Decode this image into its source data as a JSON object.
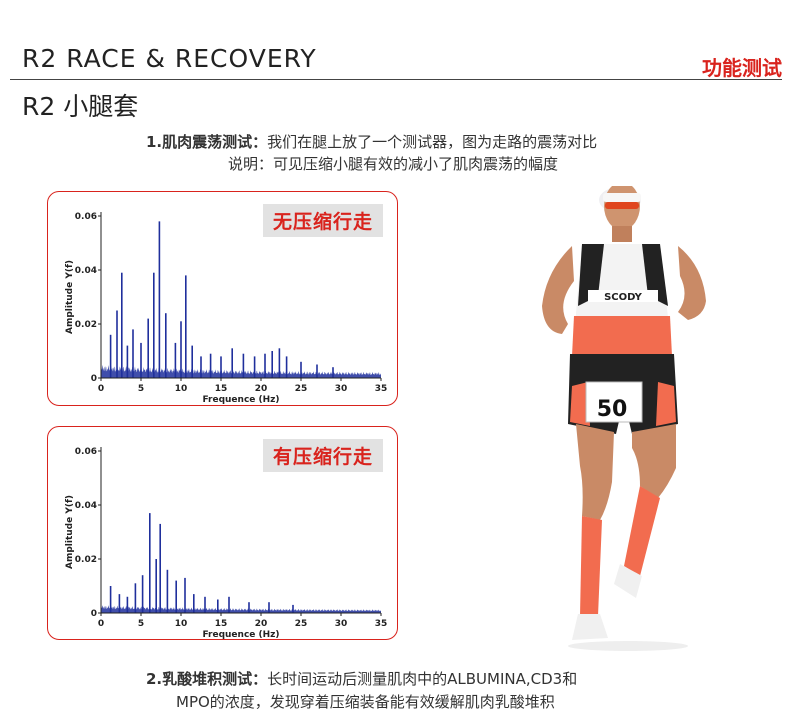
{
  "header": {
    "title": "R2 RACE & RECOVERY",
    "tag": "功能测试",
    "subtitle": "R2 小腿套"
  },
  "section1": {
    "heading": "1.肌肉震荡测试：",
    "text": "我们在腿上放了一个测试器，图为走路的震荡对比",
    "line2": "说明：可见压缩小腿有效的减小了肌肉震荡的幅度"
  },
  "section2": {
    "heading": "2.乳酸堆积测试：",
    "text": "长时间运动后测量肌肉中的ALBUMINA,CD3和",
    "line2": "MPO的浓度，发现穿着压缩装备能有效缓解肌肉乳酸堆积"
  },
  "colors": {
    "accent": "#d9231d",
    "series": "#1f2f9c"
  },
  "chart_data": [
    {
      "type": "bar",
      "tag": "无压缩行走",
      "xlabel": "Frequence (Hz)",
      "ylabel": "Amplitude  Y(f)",
      "xlim": [
        0,
        35
      ],
      "ylim": [
        0,
        0.06
      ],
      "xticks": [
        "0",
        "5",
        "10",
        "15",
        "20",
        "25",
        "30",
        "35"
      ],
      "yticks": [
        "0",
        "0.02",
        "0.04",
        "0.06"
      ],
      "peaks": [
        {
          "x": 1.2,
          "y": 0.016
        },
        {
          "x": 2.0,
          "y": 0.025
        },
        {
          "x": 2.6,
          "y": 0.039
        },
        {
          "x": 3.3,
          "y": 0.012
        },
        {
          "x": 4.0,
          "y": 0.018
        },
        {
          "x": 5.0,
          "y": 0.013
        },
        {
          "x": 5.9,
          "y": 0.022
        },
        {
          "x": 6.6,
          "y": 0.039
        },
        {
          "x": 7.3,
          "y": 0.058
        },
        {
          "x": 8.1,
          "y": 0.024
        },
        {
          "x": 9.3,
          "y": 0.013
        },
        {
          "x": 10.0,
          "y": 0.021
        },
        {
          "x": 10.6,
          "y": 0.038
        },
        {
          "x": 11.4,
          "y": 0.012
        },
        {
          "x": 12.5,
          "y": 0.008
        },
        {
          "x": 13.7,
          "y": 0.009
        },
        {
          "x": 15.0,
          "y": 0.008
        },
        {
          "x": 16.4,
          "y": 0.011
        },
        {
          "x": 17.8,
          "y": 0.009
        },
        {
          "x": 19.2,
          "y": 0.008
        },
        {
          "x": 20.5,
          "y": 0.009
        },
        {
          "x": 21.4,
          "y": 0.01
        },
        {
          "x": 22.3,
          "y": 0.011
        },
        {
          "x": 23.2,
          "y": 0.008
        },
        {
          "x": 25.0,
          "y": 0.006
        },
        {
          "x": 27.0,
          "y": 0.005
        },
        {
          "x": 29.0,
          "y": 0.004
        }
      ],
      "noise_level": 0.005
    },
    {
      "type": "bar",
      "tag": "有压缩行走",
      "xlabel": "Frequence (Hz)",
      "ylabel": "Amplitude  Y(f)",
      "xlim": [
        0,
        35
      ],
      "ylim": [
        0,
        0.06
      ],
      "xticks": [
        "0",
        "5",
        "10",
        "15",
        "20",
        "25",
        "30",
        "35"
      ],
      "yticks": [
        "0",
        "0.02",
        "0.04",
        "0.06"
      ],
      "peaks": [
        {
          "x": 1.2,
          "y": 0.01
        },
        {
          "x": 2.3,
          "y": 0.007
        },
        {
          "x": 3.3,
          "y": 0.006
        },
        {
          "x": 4.3,
          "y": 0.011
        },
        {
          "x": 5.2,
          "y": 0.014
        },
        {
          "x": 6.1,
          "y": 0.037
        },
        {
          "x": 6.9,
          "y": 0.02
        },
        {
          "x": 7.4,
          "y": 0.033
        },
        {
          "x": 8.3,
          "y": 0.016
        },
        {
          "x": 9.4,
          "y": 0.012
        },
        {
          "x": 10.5,
          "y": 0.013
        },
        {
          "x": 11.6,
          "y": 0.007
        },
        {
          "x": 13.0,
          "y": 0.006
        },
        {
          "x": 14.6,
          "y": 0.005
        },
        {
          "x": 16.0,
          "y": 0.006
        },
        {
          "x": 18.5,
          "y": 0.004
        },
        {
          "x": 21.0,
          "y": 0.004
        },
        {
          "x": 24.0,
          "y": 0.003
        }
      ],
      "noise_level": 0.003
    }
  ],
  "runner": {
    "brand": "SCODY",
    "bib_number": "50"
  }
}
